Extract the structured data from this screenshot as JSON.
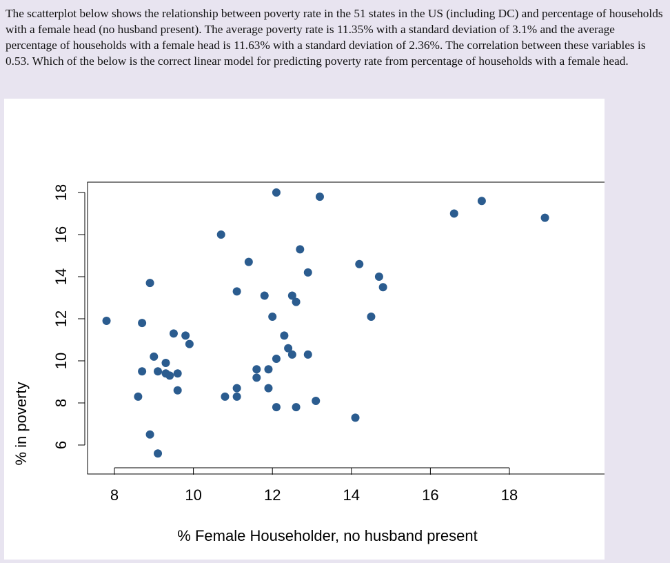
{
  "question": {
    "text": "The scatterplot below shows the relationship between poverty rate in the 51 states in the US (including DC) and percentage of households with a female head (no husband present). The average poverty rate is 11.35% with a standard deviation of 3.1% and the average percentage of households with a female head is 11.63% with a standard deviation of 2.36%. The correlation between these variables is 0.53. Which of the below is the correct linear model for predicting poverty rate from percentage of households with a female head."
  },
  "chart_data": {
    "type": "scatter",
    "xlabel": "% Female Householder, no husband present",
    "ylabel": "% in poverty",
    "xticks": [
      8,
      10,
      12,
      14,
      16,
      18
    ],
    "yticks": [
      6,
      8,
      10,
      12,
      14,
      16,
      18
    ],
    "xlim": [
      7.7,
      19.0
    ],
    "ylim": [
      5.3,
      18.5
    ],
    "grid": false,
    "marker_color": "#2b5c8f",
    "points": [
      {
        "x": 7.8,
        "y": 11.9
      },
      {
        "x": 8.6,
        "y": 8.3
      },
      {
        "x": 8.7,
        "y": 11.8
      },
      {
        "x": 8.7,
        "y": 9.5
      },
      {
        "x": 8.9,
        "y": 13.7
      },
      {
        "x": 8.9,
        "y": 6.5
      },
      {
        "x": 9.0,
        "y": 10.2
      },
      {
        "x": 9.1,
        "y": 9.5
      },
      {
        "x": 9.1,
        "y": 5.6
      },
      {
        "x": 9.3,
        "y": 9.9
      },
      {
        "x": 9.3,
        "y": 9.4
      },
      {
        "x": 9.4,
        "y": 9.3
      },
      {
        "x": 9.5,
        "y": 11.3
      },
      {
        "x": 9.6,
        "y": 9.4
      },
      {
        "x": 9.6,
        "y": 8.6
      },
      {
        "x": 9.8,
        "y": 11.2
      },
      {
        "x": 9.9,
        "y": 10.8
      },
      {
        "x": 10.7,
        "y": 16.0
      },
      {
        "x": 10.8,
        "y": 8.3
      },
      {
        "x": 11.1,
        "y": 13.3
      },
      {
        "x": 11.1,
        "y": 8.7
      },
      {
        "x": 11.1,
        "y": 8.3
      },
      {
        "x": 11.4,
        "y": 14.7
      },
      {
        "x": 11.6,
        "y": 9.6
      },
      {
        "x": 11.6,
        "y": 9.2
      },
      {
        "x": 11.8,
        "y": 13.1
      },
      {
        "x": 11.9,
        "y": 9.6
      },
      {
        "x": 11.9,
        "y": 8.7
      },
      {
        "x": 12.0,
        "y": 12.1
      },
      {
        "x": 12.1,
        "y": 18.0
      },
      {
        "x": 12.1,
        "y": 10.1
      },
      {
        "x": 12.1,
        "y": 7.8
      },
      {
        "x": 12.3,
        "y": 11.2
      },
      {
        "x": 12.4,
        "y": 10.6
      },
      {
        "x": 12.5,
        "y": 13.1
      },
      {
        "x": 12.5,
        "y": 10.3
      },
      {
        "x": 12.6,
        "y": 12.8
      },
      {
        "x": 12.6,
        "y": 7.8
      },
      {
        "x": 12.7,
        "y": 15.3
      },
      {
        "x": 12.9,
        "y": 14.2
      },
      {
        "x": 12.9,
        "y": 10.3
      },
      {
        "x": 13.1,
        "y": 8.1
      },
      {
        "x": 13.2,
        "y": 17.8
      },
      {
        "x": 14.1,
        "y": 7.3
      },
      {
        "x": 14.2,
        "y": 14.6
      },
      {
        "x": 14.5,
        "y": 12.1
      },
      {
        "x": 14.7,
        "y": 14.0
      },
      {
        "x": 14.8,
        "y": 13.5
      },
      {
        "x": 16.6,
        "y": 17.0
      },
      {
        "x": 17.3,
        "y": 17.6
      },
      {
        "x": 18.9,
        "y": 16.8
      }
    ]
  }
}
